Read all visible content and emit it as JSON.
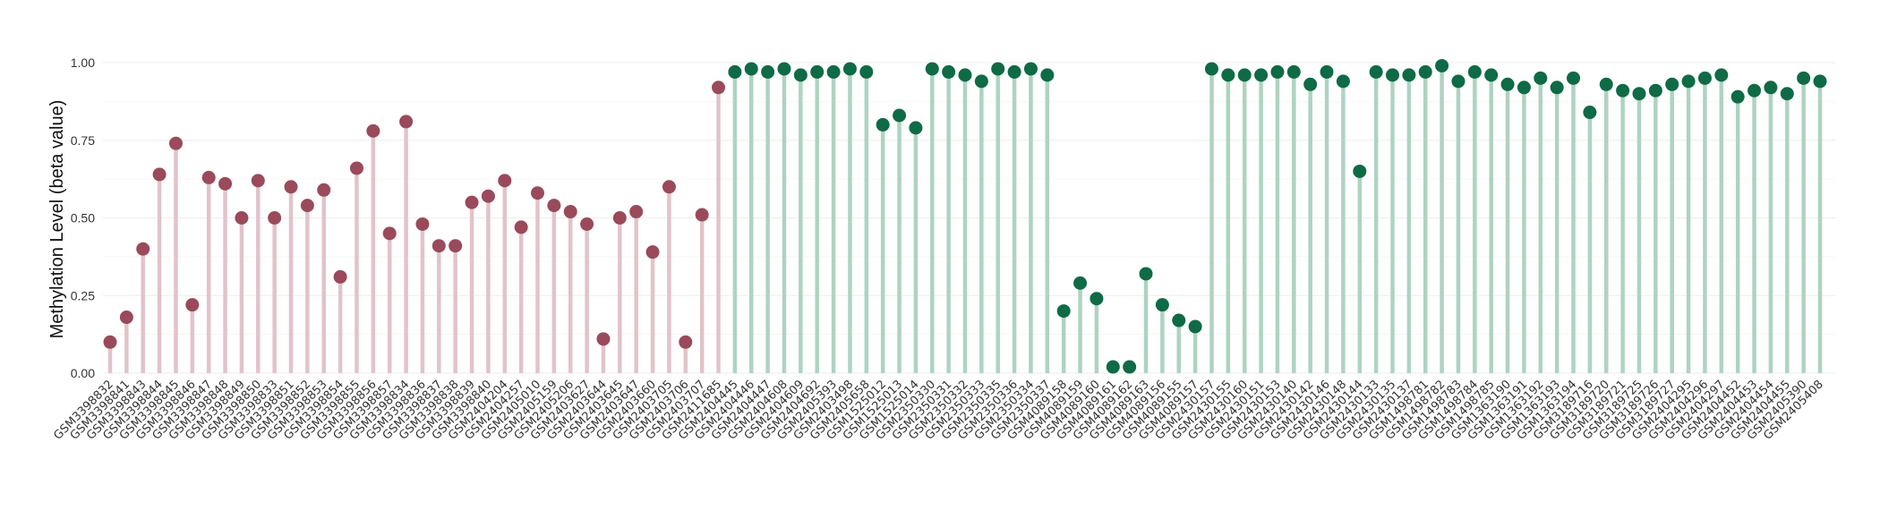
{
  "chart_data": {
    "type": "lollipop",
    "title": "",
    "xlabel": "",
    "ylabel": "Methylation Level (beta value)",
    "ylim": [
      0,
      1
    ],
    "yticks": [
      "0.00",
      "0.25",
      "0.50",
      "0.75",
      "1.00"
    ],
    "grid": true,
    "legend": "none",
    "colors": {
      "group_a_point": "#9a4a5a",
      "group_a_stem": "#e2c3ca",
      "group_b_point": "#0e6b45",
      "group_b_stem": "#aed3c2",
      "grid": "#eeeeee"
    },
    "points": [
      {
        "label": "GSM3398832",
        "value": 0.1,
        "group": "a"
      },
      {
        "label": "GSM3398841",
        "value": 0.18,
        "group": "a"
      },
      {
        "label": "GSM3398843",
        "value": 0.4,
        "group": "a"
      },
      {
        "label": "GSM3398844",
        "value": 0.64,
        "group": "a"
      },
      {
        "label": "GSM3398845",
        "value": 0.74,
        "group": "a"
      },
      {
        "label": "GSM3398846",
        "value": 0.22,
        "group": "a"
      },
      {
        "label": "GSM3398847",
        "value": 0.63,
        "group": "a"
      },
      {
        "label": "GSM3398848",
        "value": 0.61,
        "group": "a"
      },
      {
        "label": "GSM3398849",
        "value": 0.5,
        "group": "a"
      },
      {
        "label": "GSM3398850",
        "value": 0.62,
        "group": "a"
      },
      {
        "label": "GSM3398833",
        "value": 0.5,
        "group": "a"
      },
      {
        "label": "GSM3398851",
        "value": 0.6,
        "group": "a"
      },
      {
        "label": "GSM3398852",
        "value": 0.54,
        "group": "a"
      },
      {
        "label": "GSM3398853",
        "value": 0.59,
        "group": "a"
      },
      {
        "label": "GSM3398854",
        "value": 0.31,
        "group": "a"
      },
      {
        "label": "GSM3398855",
        "value": 0.66,
        "group": "a"
      },
      {
        "label": "GSM3398856",
        "value": 0.78,
        "group": "a"
      },
      {
        "label": "GSM3398857",
        "value": 0.45,
        "group": "a"
      },
      {
        "label": "GSM3398834",
        "value": 0.81,
        "group": "a"
      },
      {
        "label": "GSM3398836",
        "value": 0.48,
        "group": "a"
      },
      {
        "label": "GSM3398837",
        "value": 0.41,
        "group": "a"
      },
      {
        "label": "GSM3398838",
        "value": 0.41,
        "group": "a"
      },
      {
        "label": "GSM3398839",
        "value": 0.55,
        "group": "a"
      },
      {
        "label": "GSM3398840",
        "value": 0.57,
        "group": "a"
      },
      {
        "label": "GSM2404204",
        "value": 0.62,
        "group": "a"
      },
      {
        "label": "GSM2404257",
        "value": 0.47,
        "group": "a"
      },
      {
        "label": "GSM2405010",
        "value": 0.58,
        "group": "a"
      },
      {
        "label": "GSM2405159",
        "value": 0.54,
        "group": "a"
      },
      {
        "label": "GSM2405206",
        "value": 0.52,
        "group": "a"
      },
      {
        "label": "GSM2403627",
        "value": 0.48,
        "group": "a"
      },
      {
        "label": "GSM2403644",
        "value": 0.11,
        "group": "a"
      },
      {
        "label": "GSM2403645",
        "value": 0.5,
        "group": "a"
      },
      {
        "label": "GSM2403647",
        "value": 0.52,
        "group": "a"
      },
      {
        "label": "GSM2403660",
        "value": 0.39,
        "group": "a"
      },
      {
        "label": "GSM2403705",
        "value": 0.6,
        "group": "a"
      },
      {
        "label": "GSM2403706",
        "value": 0.1,
        "group": "a"
      },
      {
        "label": "GSM2403707",
        "value": 0.51,
        "group": "a"
      },
      {
        "label": "GSM2411685",
        "value": 0.92,
        "group": "a"
      },
      {
        "label": "GSM2404445",
        "value": 0.97,
        "group": "b"
      },
      {
        "label": "GSM2404446",
        "value": 0.98,
        "group": "b"
      },
      {
        "label": "GSM2404447",
        "value": 0.97,
        "group": "b"
      },
      {
        "label": "GSM2404608",
        "value": 0.98,
        "group": "b"
      },
      {
        "label": "GSM2404609",
        "value": 0.96,
        "group": "b"
      },
      {
        "label": "GSM2404692",
        "value": 0.97,
        "group": "b"
      },
      {
        "label": "GSM2405393",
        "value": 0.97,
        "group": "b"
      },
      {
        "label": "GSM2403498",
        "value": 0.98,
        "group": "b"
      },
      {
        "label": "GSM2405658",
        "value": 0.97,
        "group": "b"
      },
      {
        "label": "GSM1525012",
        "value": 0.8,
        "group": "b"
      },
      {
        "label": "GSM1525013",
        "value": 0.83,
        "group": "b"
      },
      {
        "label": "GSM1525014",
        "value": 0.79,
        "group": "b"
      },
      {
        "label": "GSM2350330",
        "value": 0.98,
        "group": "b"
      },
      {
        "label": "GSM2350331",
        "value": 0.97,
        "group": "b"
      },
      {
        "label": "GSM2350332",
        "value": 0.96,
        "group": "b"
      },
      {
        "label": "GSM2350333",
        "value": 0.94,
        "group": "b"
      },
      {
        "label": "GSM2350335",
        "value": 0.98,
        "group": "b"
      },
      {
        "label": "GSM2350336",
        "value": 0.97,
        "group": "b"
      },
      {
        "label": "GSM2350334",
        "value": 0.98,
        "group": "b"
      },
      {
        "label": "GSM2350337",
        "value": 0.96,
        "group": "b"
      },
      {
        "label": "GSM4089158",
        "value": 0.2,
        "group": "b"
      },
      {
        "label": "GSM4089159",
        "value": 0.29,
        "group": "b"
      },
      {
        "label": "GSM4089160",
        "value": 0.24,
        "group": "b"
      },
      {
        "label": "GSM4089161",
        "value": 0.02,
        "group": "b"
      },
      {
        "label": "GSM4089162",
        "value": 0.02,
        "group": "b"
      },
      {
        "label": "GSM4089163",
        "value": 0.32,
        "group": "b"
      },
      {
        "label": "GSM4089156",
        "value": 0.22,
        "group": "b"
      },
      {
        "label": "GSM4089155",
        "value": 0.17,
        "group": "b"
      },
      {
        "label": "GSM4089157",
        "value": 0.15,
        "group": "b"
      },
      {
        "label": "GSM2430157",
        "value": 0.98,
        "group": "b"
      },
      {
        "label": "GSM2430155",
        "value": 0.96,
        "group": "b"
      },
      {
        "label": "GSM2430160",
        "value": 0.96,
        "group": "b"
      },
      {
        "label": "GSM2430151",
        "value": 0.96,
        "group": "b"
      },
      {
        "label": "GSM2430153",
        "value": 0.97,
        "group": "b"
      },
      {
        "label": "GSM2430140",
        "value": 0.97,
        "group": "b"
      },
      {
        "label": "GSM2430142",
        "value": 0.93,
        "group": "b"
      },
      {
        "label": "GSM2430146",
        "value": 0.97,
        "group": "b"
      },
      {
        "label": "GSM2430148",
        "value": 0.94,
        "group": "b"
      },
      {
        "label": "GSM2430144",
        "value": 0.65,
        "group": "b"
      },
      {
        "label": "GSM2430133",
        "value": 0.97,
        "group": "b"
      },
      {
        "label": "GSM2430135",
        "value": 0.96,
        "group": "b"
      },
      {
        "label": "GSM2430137",
        "value": 0.96,
        "group": "b"
      },
      {
        "label": "GSM1498781",
        "value": 0.97,
        "group": "b"
      },
      {
        "label": "GSM1498782",
        "value": 0.99,
        "group": "b"
      },
      {
        "label": "GSM1498783",
        "value": 0.94,
        "group": "b"
      },
      {
        "label": "GSM1498784",
        "value": 0.97,
        "group": "b"
      },
      {
        "label": "GSM1498785",
        "value": 0.96,
        "group": "b"
      },
      {
        "label": "GSM1363190",
        "value": 0.93,
        "group": "b"
      },
      {
        "label": "GSM1363191",
        "value": 0.92,
        "group": "b"
      },
      {
        "label": "GSM1363192",
        "value": 0.95,
        "group": "b"
      },
      {
        "label": "GSM1363193",
        "value": 0.92,
        "group": "b"
      },
      {
        "label": "GSM1363194",
        "value": 0.95,
        "group": "b"
      },
      {
        "label": "GSM3189716",
        "value": 0.84,
        "group": "b"
      },
      {
        "label": "GSM3189720",
        "value": 0.93,
        "group": "b"
      },
      {
        "label": "GSM3189721",
        "value": 0.91,
        "group": "b"
      },
      {
        "label": "GSM3189725",
        "value": 0.9,
        "group": "b"
      },
      {
        "label": "GSM3189726",
        "value": 0.91,
        "group": "b"
      },
      {
        "label": "GSM3189727",
        "value": 0.93,
        "group": "b"
      },
      {
        "label": "GSM2404295",
        "value": 0.94,
        "group": "b"
      },
      {
        "label": "GSM2404296",
        "value": 0.95,
        "group": "b"
      },
      {
        "label": "GSM2404297",
        "value": 0.96,
        "group": "b"
      },
      {
        "label": "GSM2404452",
        "value": 0.89,
        "group": "b"
      },
      {
        "label": "GSM2404453",
        "value": 0.91,
        "group": "b"
      },
      {
        "label": "GSM2404454",
        "value": 0.92,
        "group": "b"
      },
      {
        "label": "GSM2404455",
        "value": 0.9,
        "group": "b"
      },
      {
        "label": "GSM2405390",
        "value": 0.95,
        "group": "b"
      },
      {
        "label": "GSM2405408",
        "value": 0.94,
        "group": "b"
      }
    ]
  }
}
